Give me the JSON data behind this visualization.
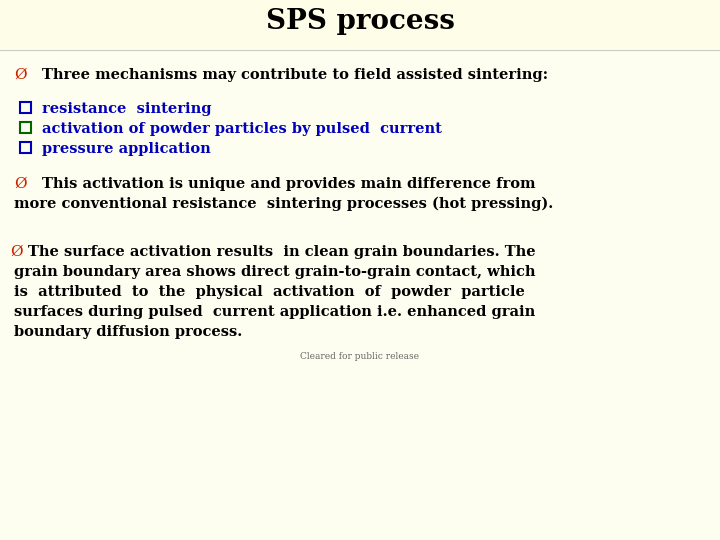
{
  "title": "SPS process",
  "bg_color": "#FDFDF0",
  "title_color": "#000000",
  "title_fontsize": 20,
  "arrow_color": "#CC2200",
  "blue_color": "#0000BB",
  "black_color": "#000000",
  "small_gray": "#666666",
  "line1": "Three mechanisms may contribute to field assisted sintering:",
  "bullet1": "resistance  sintering",
  "bullet2": "activation of powder particles by pulsed  current",
  "bullet3": "pressure application",
  "para2_line1": "This activation is unique and provides main difference from",
  "para2_line2": "more conventional resistance  sintering processes (hot pressing).",
  "para3_line1": "The surface activation results  in clean grain boundaries. The",
  "para3_line2": "grain boundary area shows direct grain-to-grain contact, which",
  "para3_line3": "is  attributed  to  the  physical  activation  of  powder  particle",
  "para3_line4": "surfaces during pulsed  current application i.e. enhanced grain",
  "para3_line5": "boundary diffusion process.",
  "footer": "Cleared for public release",
  "bullet_box_colors": [
    "#0000BB",
    "#006600",
    "#0000BB"
  ],
  "body_fontsize": 10.5,
  "arrow_fontsize": 11
}
